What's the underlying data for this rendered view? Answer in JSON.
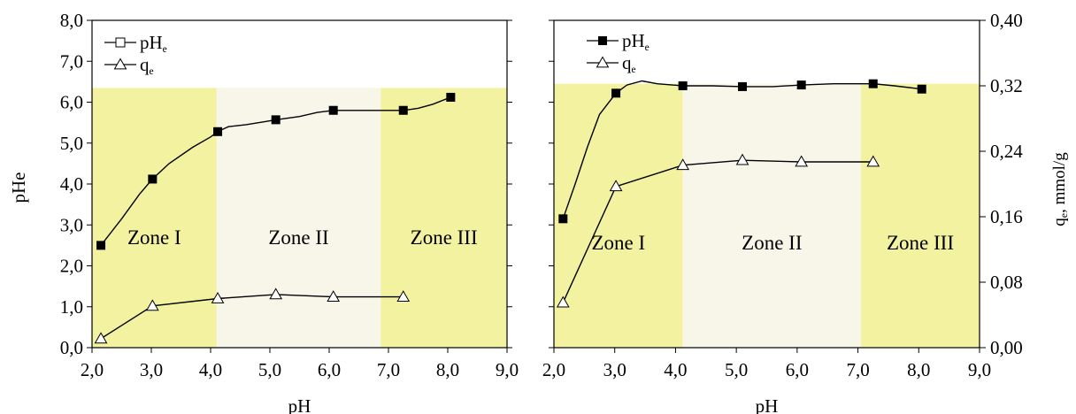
{
  "chart_data": [
    {
      "type": "line",
      "title": "",
      "xlabel": "pH",
      "ylabel": "pHe",
      "xlim": [
        2.0,
        9.0
      ],
      "ylim": [
        0.0,
        8.0
      ],
      "x_ticks": [
        "2,0",
        "3,0",
        "4,0",
        "5,0",
        "6,0",
        "7,0",
        "8,0",
        "9,0"
      ],
      "y_ticks": [
        "0,0",
        "1,0",
        "2,0",
        "3,0",
        "4,0",
        "5,0",
        "6,0",
        "7,0",
        "8,0"
      ],
      "grid": false,
      "legend_position": "top-left",
      "zones": [
        {
          "label": "Zone I",
          "x_from": 2.0,
          "x_to": 4.1,
          "y_to": 6.35,
          "color": "#f2f2a0"
        },
        {
          "label": "Zone II",
          "x_from": 4.1,
          "x_to": 6.87,
          "y_to": 6.35,
          "color": "#f7f6e8"
        },
        {
          "label": "Zone III",
          "x_from": 6.87,
          "x_to": 9.0,
          "y_to": 6.35,
          "color": "#f2f2a0"
        }
      ],
      "series": [
        {
          "name": "pHe",
          "marker": "square-filled",
          "x": [
            2.15,
            3.02,
            4.12,
            5.1,
            6.07,
            7.25,
            8.05
          ],
          "values": [
            2.5,
            4.12,
            5.28,
            5.57,
            5.8,
            5.8,
            6.12
          ],
          "curve_x": [
            2.15,
            2.5,
            2.8,
            3.02,
            3.3,
            3.7,
            4.0,
            4.12,
            4.3,
            4.6,
            4.9,
            5.1,
            5.5,
            5.8,
            6.07,
            6.5,
            7.0,
            7.25,
            7.5,
            7.75,
            8.05
          ],
          "curve_y": [
            2.5,
            3.15,
            3.75,
            4.12,
            4.5,
            4.9,
            5.15,
            5.28,
            5.4,
            5.45,
            5.52,
            5.57,
            5.65,
            5.75,
            5.8,
            5.8,
            5.8,
            5.8,
            5.85,
            5.95,
            6.12
          ]
        },
        {
          "name": "qe",
          "marker": "triangle-open",
          "x": [
            2.15,
            3.02,
            4.12,
            5.1,
            6.07,
            7.25
          ],
          "values": [
            0.22,
            1.02,
            1.2,
            1.3,
            1.24,
            1.24
          ]
        }
      ],
      "legend": [
        {
          "name": "pH",
          "sub": "e",
          "marker": "square-open"
        },
        {
          "name": "q",
          "sub": "e",
          "marker": "triangle-open"
        }
      ]
    },
    {
      "type": "line",
      "title": "",
      "xlabel": "pH",
      "ylabel": "qe, mmol/g",
      "ylabel_main": "q",
      "ylabel_sub": "e",
      "ylabel_rest": ", mmol/g",
      "xlim": [
        2.0,
        9.0
      ],
      "ylim": [
        0.0,
        0.4
      ],
      "left_ylim": [
        0.0,
        8.0
      ],
      "x_ticks": [
        "2,0",
        "3,0",
        "4,0",
        "5,0",
        "6,0",
        "7,0",
        "8,0",
        "9,0"
      ],
      "y_ticks": [
        "0,00",
        "0,08",
        "0,16",
        "0,24",
        "0,32",
        "0,40"
      ],
      "grid": false,
      "legend_position": "top-left",
      "zones": [
        {
          "label": "Zone I",
          "x_from": 2.0,
          "x_to": 4.12,
          "y_to": 6.45,
          "color": "#f2f2a0"
        },
        {
          "label": "Zone II",
          "x_from": 4.12,
          "x_to": 7.05,
          "y_to": 6.45,
          "color": "#f7f6e8"
        },
        {
          "label": "Zone III",
          "x_from": 7.05,
          "x_to": 9.0,
          "y_to": 6.45,
          "color": "#f2f2a0"
        }
      ],
      "series": [
        {
          "name": "pHe",
          "axis": "left",
          "marker": "square-filled",
          "x": [
            2.15,
            3.02,
            4.12,
            5.1,
            6.07,
            7.25,
            8.05
          ],
          "values": [
            3.15,
            6.22,
            6.4,
            6.38,
            6.42,
            6.45,
            6.32
          ],
          "curve_x": [
            2.15,
            2.35,
            2.55,
            2.75,
            3.02,
            3.2,
            3.45,
            3.7,
            4.12,
            4.6,
            5.1,
            5.6,
            6.07,
            6.6,
            7.25,
            7.6,
            8.05
          ],
          "curve_y": [
            3.15,
            4.0,
            4.9,
            5.7,
            6.22,
            6.42,
            6.52,
            6.45,
            6.4,
            6.4,
            6.38,
            6.38,
            6.42,
            6.45,
            6.45,
            6.4,
            6.32
          ]
        },
        {
          "name": "qe",
          "axis": "right",
          "marker": "triangle-open",
          "x": [
            2.15,
            3.02,
            4.12,
            5.1,
            6.07,
            7.25
          ],
          "values": [
            0.055,
            0.197,
            0.223,
            0.229,
            0.227,
            0.227
          ]
        }
      ],
      "legend": [
        {
          "name": "pH",
          "sub": "e",
          "marker": "square-filled"
        },
        {
          "name": "q",
          "sub": "e",
          "marker": "triangle-open"
        }
      ]
    }
  ]
}
